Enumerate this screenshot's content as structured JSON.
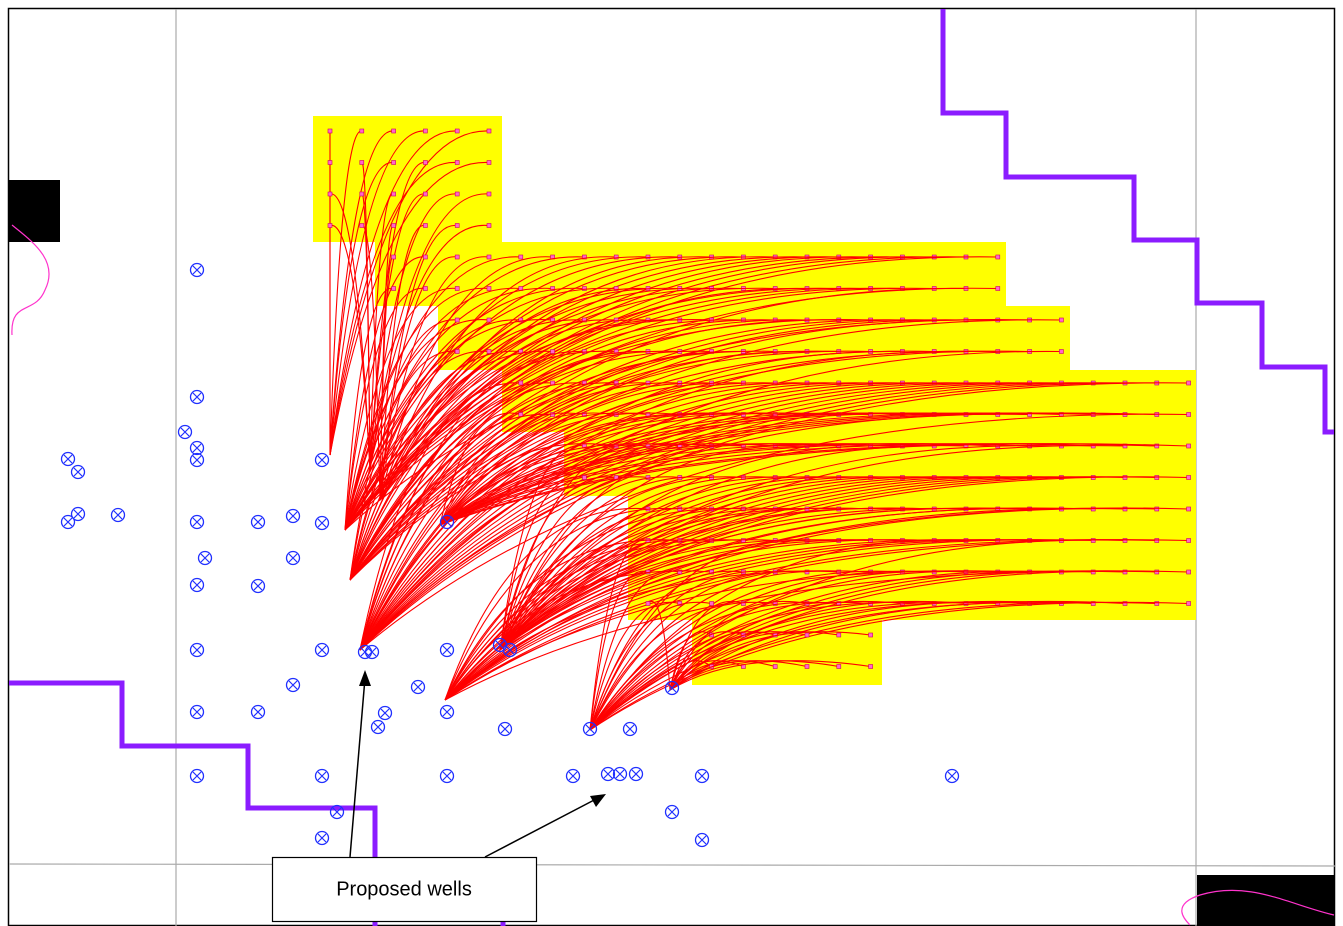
{
  "callout": {
    "label": "Proposed wells"
  }
}
